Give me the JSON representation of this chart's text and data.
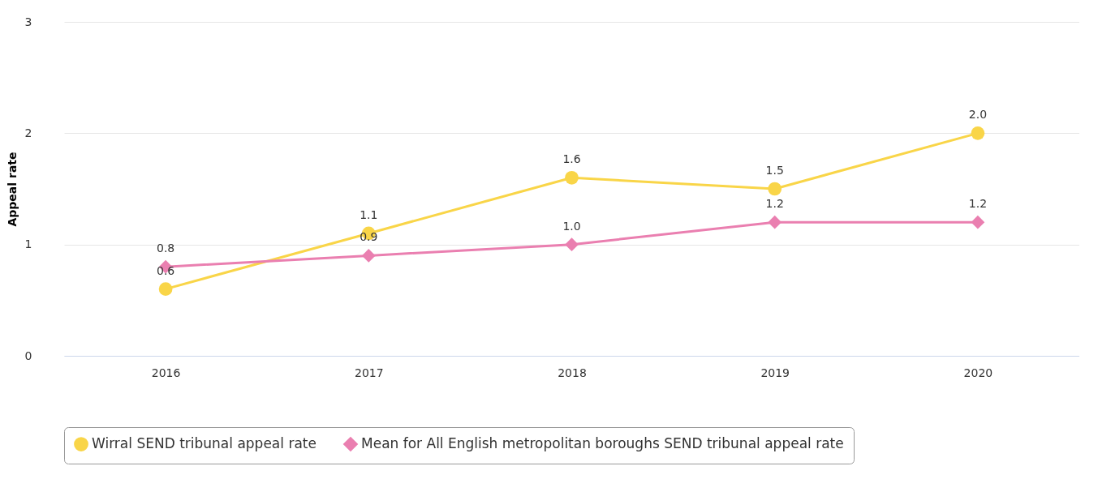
{
  "chart_data": {
    "type": "line",
    "ylabel": "Appeal rate",
    "categories": [
      "2016",
      "2017",
      "2018",
      "2019",
      "2020"
    ],
    "series": [
      {
        "name": "Wirral SEND tribunal appeal rate",
        "color": "#f9d548",
        "marker": "circle",
        "values": [
          0.6,
          1.1,
          1.6,
          1.5,
          2.0
        ],
        "value_labels": [
          "0.6",
          "1.1",
          "1.6",
          "1.5",
          "2.0"
        ]
      },
      {
        "name": "Mean for All English metropolitan boroughs SEND tribunal appeal rate",
        "color": "#ea7fb0",
        "marker": "diamond",
        "values": [
          0.8,
          0.9,
          1.0,
          1.2,
          1.2
        ],
        "value_labels": [
          "0.8",
          "0.9",
          "1.0",
          "1.2",
          "1.2"
        ]
      }
    ],
    "ylim": [
      0,
      3
    ],
    "yticks": [
      0,
      1,
      2,
      3
    ],
    "grid": "y",
    "legend": "bottom"
  }
}
